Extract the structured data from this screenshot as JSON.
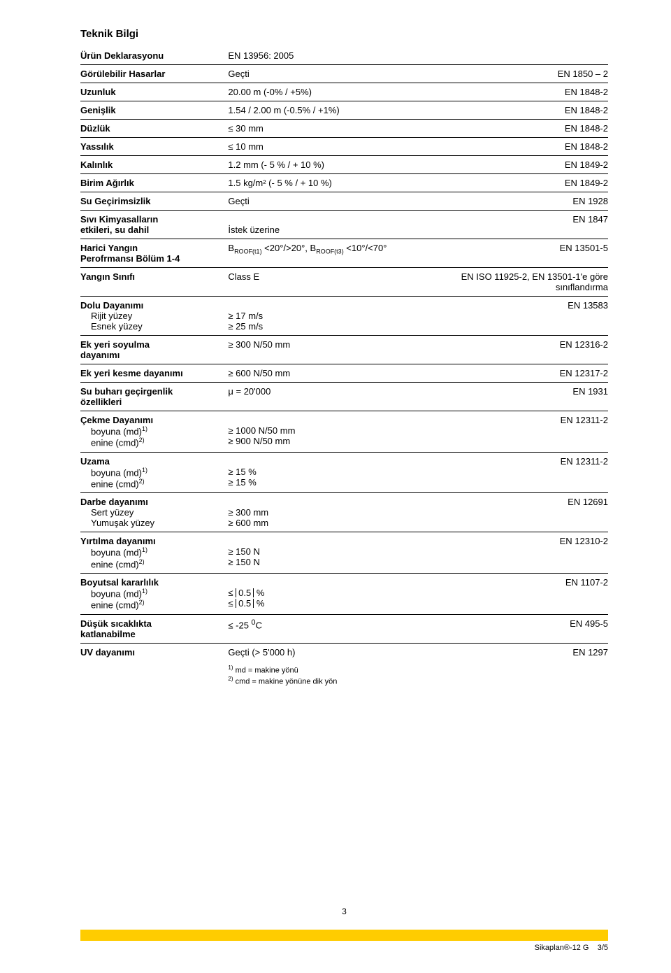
{
  "page": {
    "section_title": "Teknik Bilgi",
    "page_number_center": "3",
    "footer_product": "Sikaplan®-12 G",
    "footer_page": "3/5",
    "accent_color": "#ffcc00"
  },
  "rows": {
    "r0": {
      "label": "Ürün Deklarasyonu",
      "value": "EN 13956: 2005",
      "std": ""
    },
    "r1": {
      "label": "Görülebilir Hasarlar",
      "value": "Geçti",
      "std": "EN 1850 – 2"
    },
    "r2": {
      "label": "Uzunluk",
      "value": "20.00 m (-0% / +5%)",
      "std": "EN 1848-2"
    },
    "r3": {
      "label": "Genişlik",
      "value": "1.54 / 2.00 m (-0.5% / +1%)",
      "std": "EN 1848-2"
    },
    "r4": {
      "label": "Düzlük",
      "value": "≤ 30 mm",
      "std": "EN 1848-2"
    },
    "r5": {
      "label": "Yassılık",
      "value": "≤ 10 mm",
      "std": "EN 1848-2"
    },
    "r6": {
      "label": "Kalınlık",
      "value": "1.2 mm (- 5 % / + 10 %)",
      "std": "EN 1849-2"
    },
    "r7": {
      "label": "Birim Ağırlık",
      "value": "1.5 kg/m² (- 5 % / + 10 %)",
      "std": "EN 1849-2"
    },
    "r8": {
      "label": "Su Geçirimsizlik",
      "value": "Geçti",
      "std": "EN 1928"
    },
    "r9": {
      "label1": "Sıvı Kimyasalların",
      "label2": "etkileri, su dahil",
      "value": "İstek üzerine",
      "std": "EN 1847"
    },
    "r10": {
      "label1": "Harici Yangın",
      "label2": "Perofrmansı Bölüm 1-4",
      "value_prefix_b1": "B",
      "value_sub1": "ROOF(t1)",
      "value_mid": " <20°/>20°, ",
      "value_prefix_b2": "B",
      "value_sub2": "ROOF(t3)",
      "value_suffix": " <10°/<70°",
      "std": "EN 13501-5"
    },
    "r11": {
      "label": "Yangın Sınıfı",
      "value": "Class E",
      "std": "EN ISO 11925-2, EN 13501-1'e göre sınıflandırma"
    },
    "r12": {
      "label": "Dolu Dayanımı",
      "std": "EN 13583",
      "sub1_label": "Rijit yüzey",
      "sub1_val": "≥ 17 m/s",
      "sub2_label": "Esnek yüzey",
      "sub2_val": "≥ 25 m/s"
    },
    "r13": {
      "label1": "Ek yeri soyulma",
      "label2": "dayanımı",
      "value": "≥ 300 N/50 mm",
      "std": "EN 12316-2"
    },
    "r14": {
      "label": "Ek yeri kesme dayanımı",
      "value": "≥ 600 N/50 mm",
      "std": "EN 12317-2"
    },
    "r15": {
      "label1": "Su buharı geçirgenlik",
      "label2": "özellikleri",
      "value": "μ = 20'000",
      "std": "EN 1931"
    },
    "r16": {
      "label": "Çekme Dayanımı",
      "std": "EN 12311-2",
      "sub1_label": "boyuna (md)",
      "sub1_sup": "1)",
      "sub1_val": "≥ 1000 N/50 mm",
      "sub2_label": "enine (cmd)",
      "sub2_sup": "2)",
      "sub2_val": "≥ 900 N/50 mm"
    },
    "r17": {
      "label": "Uzama",
      "std": "EN 12311-2",
      "sub1_label": "boyuna (md)",
      "sub1_sup": "1)",
      "sub1_val": "≥ 15 %",
      "sub2_label": "enine (cmd)",
      "sub2_sup": "2)",
      "sub2_val": "≥ 15 %"
    },
    "r18": {
      "label": "Darbe dayanımı",
      "std": "EN 12691",
      "sub1_label": "Sert yüzey",
      "sub1_val": "≥ 300 mm",
      "sub2_label": "Yumuşak yüzey",
      "sub2_val": "≥ 600 mm"
    },
    "r19": {
      "label": "Yırtılma dayanımı",
      "std": "EN 12310-2",
      "sub1_label": "boyuna (md)",
      "sub1_sup": "1)",
      "sub1_val": "≥ 150 N",
      "sub2_label": "enine (cmd)",
      "sub2_sup": "2)",
      "sub2_val": "≥ 150 N"
    },
    "r20": {
      "label": "Boyutsal kararlılık",
      "std": "EN 1107-2",
      "sub1_label": "boyuna (md)",
      "sub1_sup": "1)",
      "sub1_pre": "≤ ",
      "sub1_abs": "0.5",
      "sub1_post": " %",
      "sub2_label": "enine (cmd)",
      "sub2_sup": "2)",
      "sub2_pre": "≤ ",
      "sub2_abs": "0.5",
      "sub2_post": " %"
    },
    "r21": {
      "label1": "Düşük sıcaklıkta",
      "label2": "katlanabilme",
      "value_pre": "≤ -25 ",
      "value_sup": "0",
      "value_post": "C",
      "std": "EN 495-5"
    },
    "r22": {
      "label": "UV dayanımı",
      "value": "Geçti (> 5'000 h)",
      "std": "EN 1297"
    }
  },
  "footnotes": {
    "f1_sup": "1)",
    "f1_text": " md = makine yönü",
    "f2_sup": "2)",
    "f2_text": " cmd = makine yönüne dik yön"
  }
}
